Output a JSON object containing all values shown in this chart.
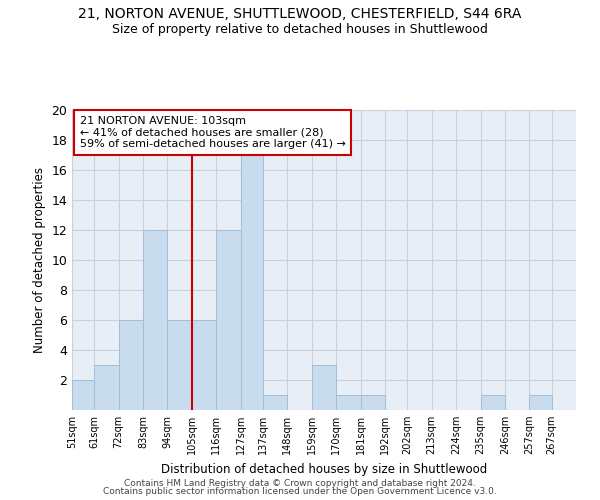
{
  "title_line1": "21, NORTON AVENUE, SHUTTLEWOOD, CHESTERFIELD, S44 6RA",
  "title_line2": "Size of property relative to detached houses in Shuttlewood",
  "xlabel": "Distribution of detached houses by size in Shuttlewood",
  "ylabel": "Number of detached properties",
  "bar_edges": [
    51,
    61,
    72,
    83,
    94,
    105,
    116,
    127,
    137,
    148,
    159,
    170,
    181,
    192,
    202,
    213,
    224,
    235,
    246,
    257,
    267,
    278
  ],
  "bar_heights": [
    2,
    3,
    6,
    12,
    6,
    6,
    12,
    17,
    1,
    0,
    3,
    1,
    1,
    0,
    0,
    0,
    0,
    1,
    0,
    1,
    0
  ],
  "bar_color": "#c9dced",
  "bar_edgecolor": "#a0bedb",
  "red_line_x": 105,
  "annotation_title": "21 NORTON AVENUE: 103sqm",
  "annotation_line2": "← 41% of detached houses are smaller (28)",
  "annotation_line3": "59% of semi-detached houses are larger (41) →",
  "annotation_box_color": "#ffffff",
  "annotation_box_edgecolor": "#cc0000",
  "red_line_color": "#cc0000",
  "ylim": [
    0,
    20
  ],
  "yticks": [
    0,
    2,
    4,
    6,
    8,
    10,
    12,
    14,
    16,
    18,
    20
  ],
  "grid_color": "#c8d0dc",
  "background_color": "#e8eef5",
  "footer_line1": "Contains HM Land Registry data © Crown copyright and database right 2024.",
  "footer_line2": "Contains public sector information licensed under the Open Government Licence v3.0.",
  "tick_labels": [
    "51sqm",
    "61sqm",
    "72sqm",
    "83sqm",
    "94sqm",
    "105sqm",
    "116sqm",
    "127sqm",
    "137sqm",
    "148sqm",
    "159sqm",
    "170sqm",
    "181sqm",
    "192sqm",
    "202sqm",
    "213sqm",
    "224sqm",
    "235sqm",
    "246sqm",
    "257sqm",
    "267sqm"
  ]
}
